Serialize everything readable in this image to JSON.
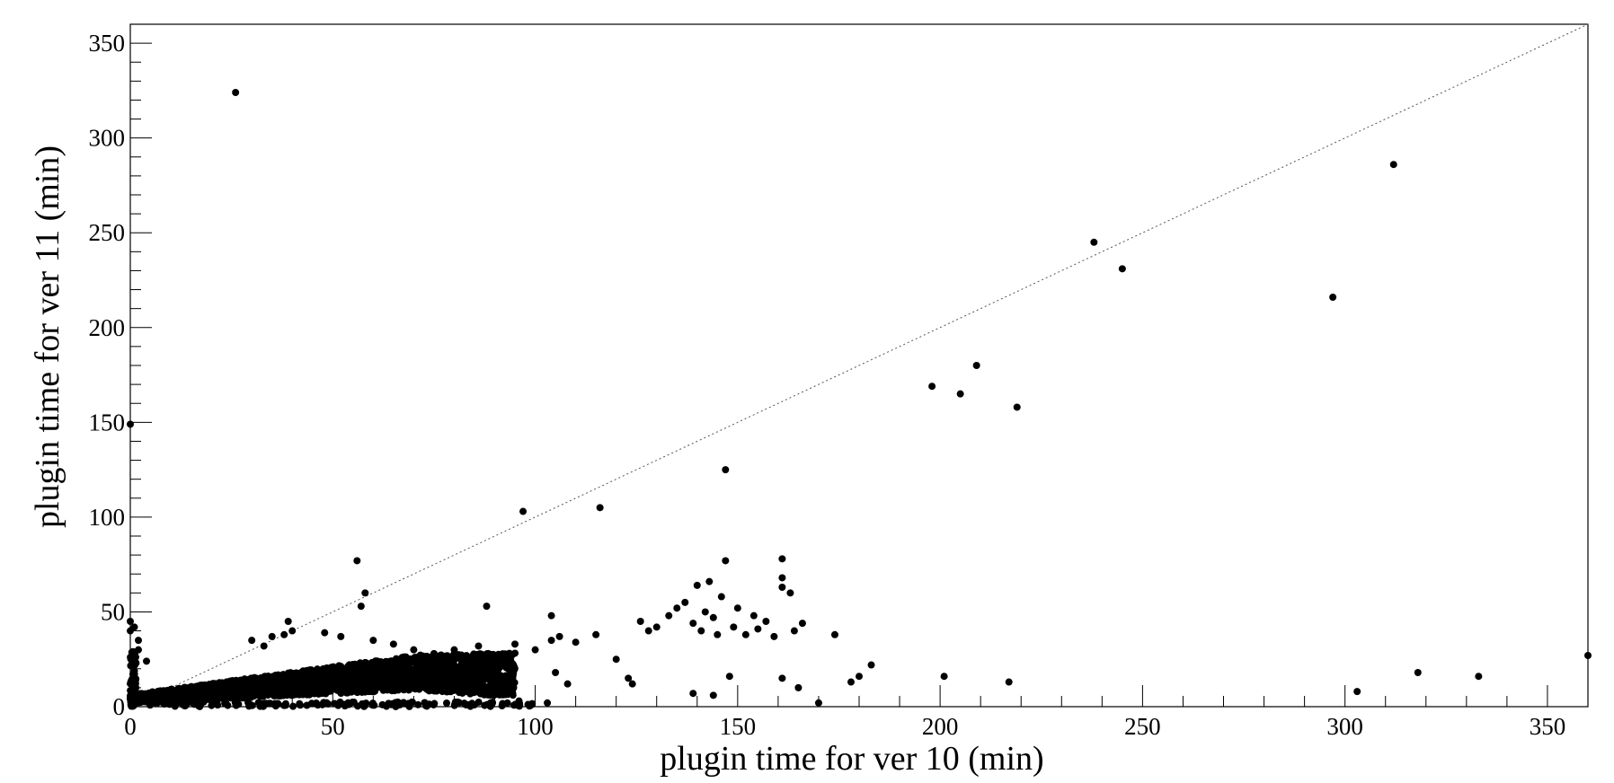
{
  "chart_data": {
    "type": "scatter",
    "title": "",
    "xlabel": "plugin time for ver 10 (min)",
    "ylabel": "plugin time for ver 11 (min)",
    "xlim": [
      0,
      360
    ],
    "ylim": [
      0,
      360
    ],
    "x_ticks": [
      "0",
      "50",
      "100",
      "150",
      "200",
      "250",
      "300",
      "350"
    ],
    "y_ticks": [
      "0",
      "50",
      "100",
      "150",
      "200",
      "250",
      "300",
      "350"
    ],
    "reference_line": "y = x (dotted)",
    "grid": false,
    "marker_color": "#000000",
    "series": [
      {
        "points": [
          [
            26,
            324
          ],
          [
            312,
            286
          ],
          [
            238,
            245
          ],
          [
            245,
            231
          ],
          [
            297,
            216
          ],
          [
            209,
            180
          ],
          [
            198,
            169
          ],
          [
            205,
            165
          ],
          [
            219,
            158
          ],
          [
            0,
            149
          ],
          [
            147,
            125
          ],
          [
            116,
            105
          ],
          [
            97,
            103
          ],
          [
            147,
            77
          ],
          [
            161,
            78
          ],
          [
            56,
            77
          ],
          [
            161,
            68
          ],
          [
            161,
            63
          ],
          [
            163,
            60
          ],
          [
            143,
            66
          ],
          [
            140,
            64
          ],
          [
            58,
            60
          ],
          [
            57,
            53
          ],
          [
            88,
            53
          ],
          [
            39,
            45
          ],
          [
            104,
            48
          ],
          [
            0,
            45
          ],
          [
            1,
            42
          ],
          [
            0,
            40
          ],
          [
            2,
            35
          ],
          [
            2,
            30
          ],
          [
            4,
            24
          ],
          [
            30,
            35
          ],
          [
            33,
            32
          ],
          [
            38,
            38
          ],
          [
            40,
            40
          ],
          [
            35,
            37
          ],
          [
            48,
            39
          ],
          [
            52,
            37
          ],
          [
            60,
            35
          ],
          [
            65,
            33
          ],
          [
            70,
            30
          ],
          [
            75,
            28
          ],
          [
            80,
            30
          ],
          [
            86,
            32
          ],
          [
            95,
            33
          ],
          [
            100,
            30
          ],
          [
            104,
            35
          ],
          [
            106,
            37
          ],
          [
            110,
            34
          ],
          [
            115,
            38
          ],
          [
            120,
            25
          ],
          [
            123,
            15
          ],
          [
            124,
            12
          ],
          [
            126,
            45
          ],
          [
            128,
            40
          ],
          [
            130,
            42
          ],
          [
            133,
            48
          ],
          [
            135,
            52
          ],
          [
            137,
            55
          ],
          [
            139,
            44
          ],
          [
            141,
            40
          ],
          [
            145,
            38
          ],
          [
            149,
            42
          ],
          [
            152,
            38
          ],
          [
            155,
            41
          ],
          [
            157,
            45
          ],
          [
            159,
            37
          ],
          [
            164,
            40
          ],
          [
            166,
            44
          ],
          [
            142,
            50
          ],
          [
            144,
            47
          ],
          [
            146,
            58
          ],
          [
            150,
            52
          ],
          [
            154,
            48
          ],
          [
            174,
            38
          ],
          [
            183,
            22
          ],
          [
            180,
            16
          ],
          [
            178,
            13
          ],
          [
            201,
            16
          ],
          [
            217,
            13
          ],
          [
            303,
            8
          ],
          [
            318,
            18
          ],
          [
            333,
            16
          ],
          [
            360,
            27
          ],
          [
            170,
            2
          ],
          [
            161,
            15
          ],
          [
            165,
            10
          ],
          [
            148,
            16
          ],
          [
            139,
            7
          ],
          [
            144,
            6
          ],
          [
            108,
            12
          ],
          [
            105,
            18
          ],
          [
            103,
            2
          ],
          [
            96,
            3
          ]
        ]
      }
    ]
  }
}
